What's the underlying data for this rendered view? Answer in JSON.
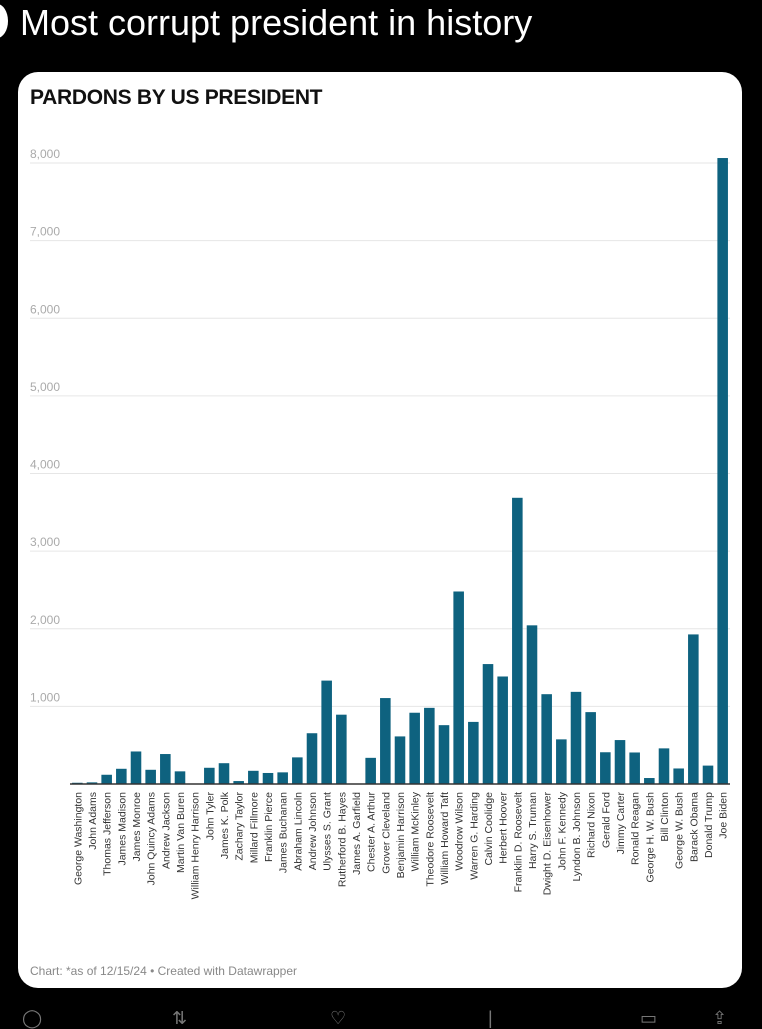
{
  "post": {
    "text": "Most corrupt president in history"
  },
  "footer": "Chart: *as of 12/15/24 • Created with Datawrapper",
  "colors": {
    "bar": "#0e627f",
    "grid": "#e6e6e6"
  },
  "chart_data": {
    "type": "bar",
    "title": "PARDONS BY US PRESIDENT",
    "xlabel": "",
    "ylabel": "",
    "ylim": [
      0,
      8000
    ],
    "yticks": [
      1000,
      2000,
      3000,
      4000,
      5000,
      6000,
      7000,
      8000
    ],
    "ytick_labels": [
      "1,000",
      "2,000",
      "3,000",
      "4,000",
      "5,000",
      "6,000",
      "7,000",
      "8,000"
    ],
    "grid": true,
    "categories": [
      "George Washington",
      "John Adams",
      "Thomas Jefferson",
      "James Madison",
      "James Monroe",
      "John Quincy Adams",
      "Andrew Jackson",
      "Martin Van Buren",
      "William Henry Harrison",
      "John Tyler",
      "James K. Polk",
      "Zachary Taylor",
      "Millard Fillmore",
      "Franklin Pierce",
      "James Buchanan",
      "Abraham Lincoln",
      "Andrew Johnson",
      "Ulysses S. Grant",
      "Rutherford B. Hayes",
      "James A. Garfield",
      "Chester A. Arthur",
      "Grover Cleveland",
      "Benjamin Harrison",
      "William McKinley",
      "Theodore Roosevelt",
      "William Howard Taft",
      "Woodrow Wilson",
      "Warren G. Harding",
      "Calvin Coolidge",
      "Herbert Hoover",
      "Franklin D. Roosevelt",
      "Harry S. Truman",
      "Dwight D. Eisenhower",
      "John F. Kennedy",
      "Lyndon B. Johnson",
      "Richard Nixon",
      "Gerald Ford",
      "Jimmy Carter",
      "Ronald Reagan",
      "George H. W. Bush",
      "Bill Clinton",
      "George W. Bush",
      "Barack Obama",
      "Donald Trump",
      "Joe Biden"
    ],
    "values": [
      16,
      21,
      119,
      196,
      419,
      183,
      386,
      163,
      0,
      209,
      268,
      38,
      170,
      142,
      150,
      343,
      654,
      1332,
      893,
      0,
      337,
      1107,
      613,
      918,
      981,
      758,
      2480,
      800,
      1545,
      1385,
      3687,
      2044,
      1157,
      575,
      1187,
      926,
      409,
      566,
      406,
      77,
      459,
      200,
      1927,
      237,
      8064
    ]
  }
}
